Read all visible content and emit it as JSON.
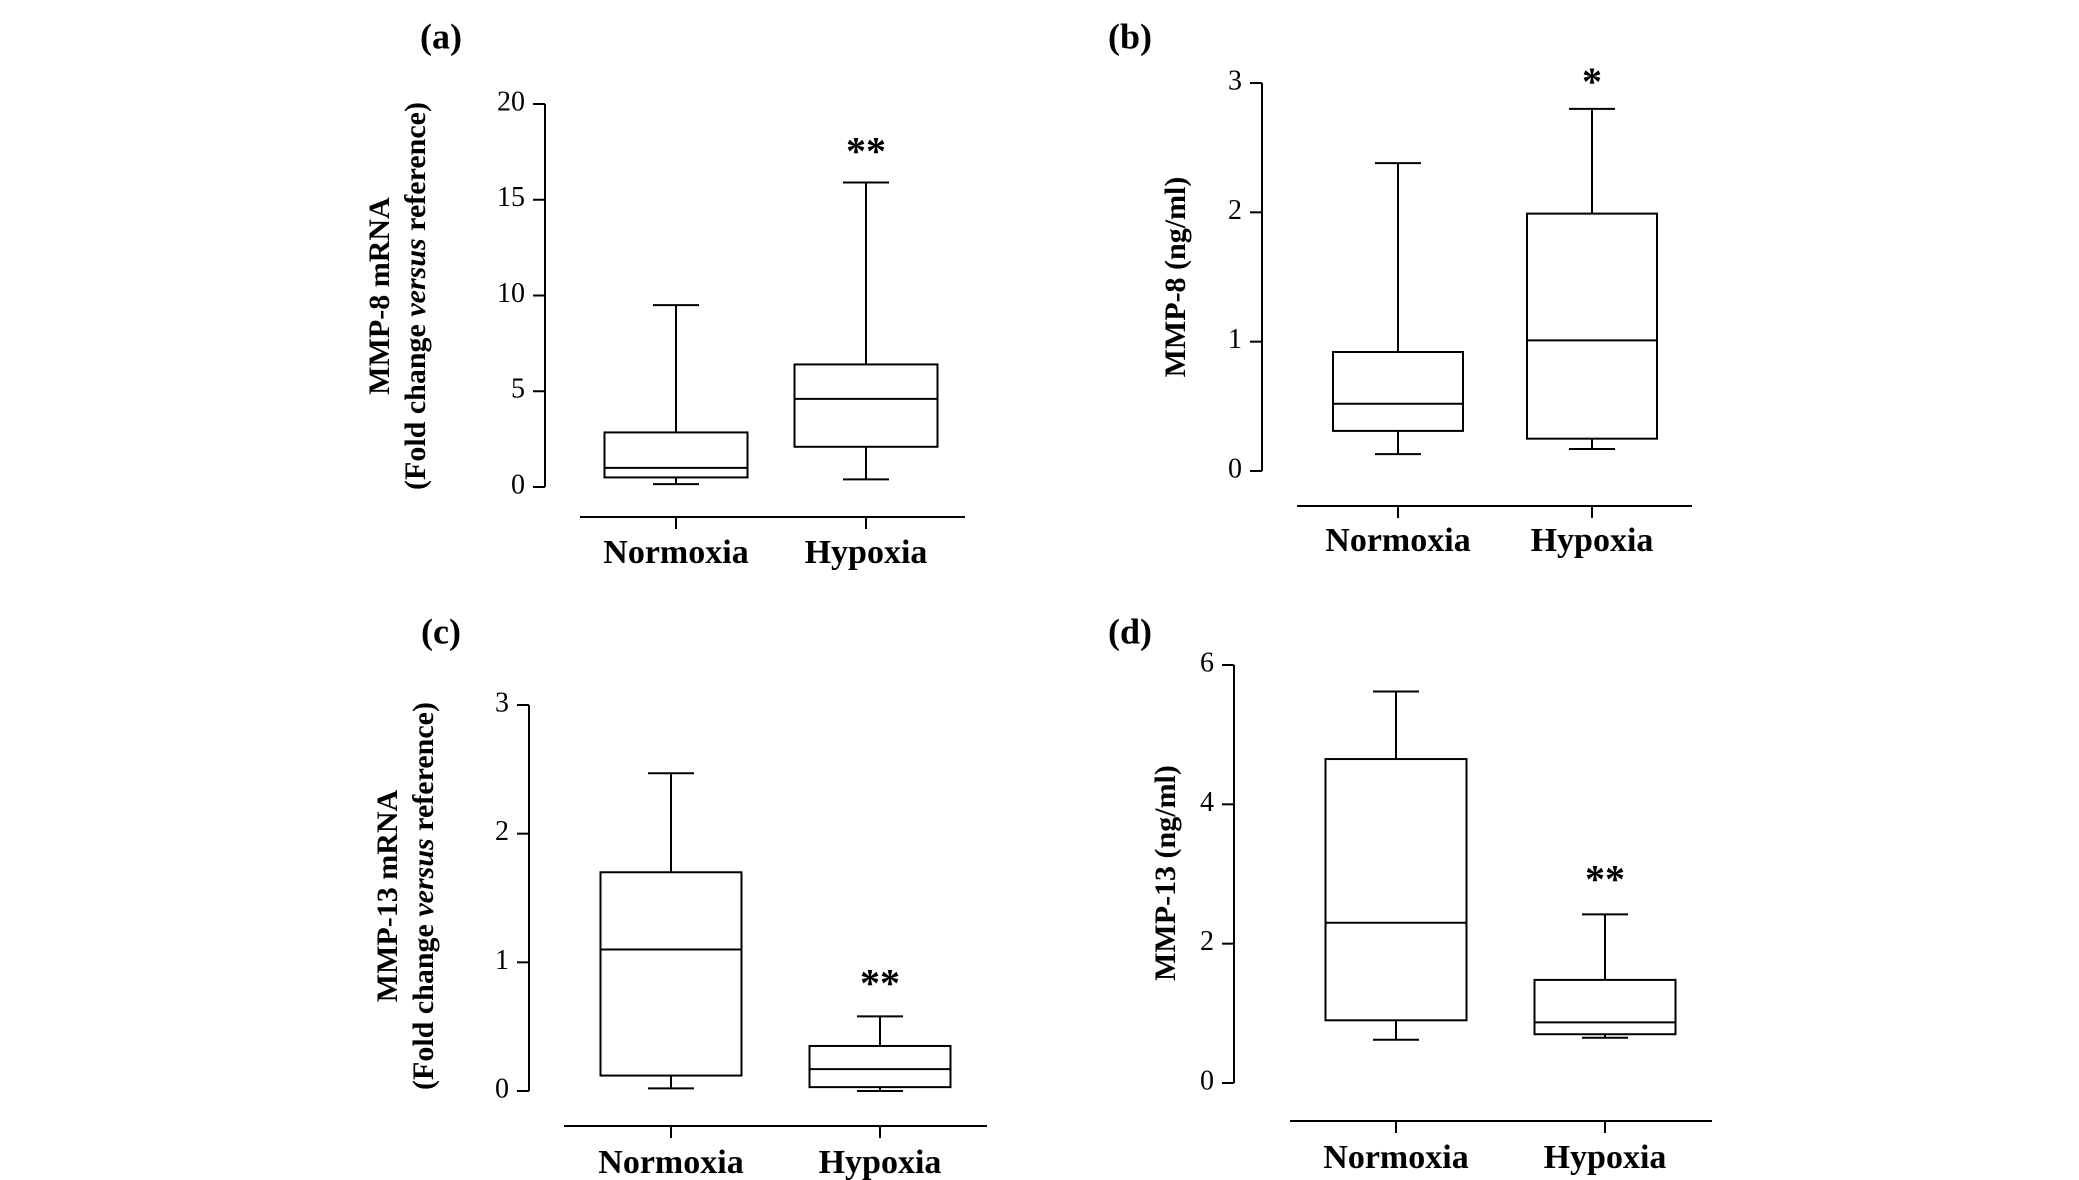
{
  "chart_data": [
    {
      "type": "box",
      "panel": "(a)",
      "ylabel_lines": [
        [
          {
            "t": "MMP-8 mRNA",
            "i": false
          }
        ],
        [
          {
            "t": "(Fold change ",
            "i": false
          },
          {
            "t": "versus",
            "i": true
          },
          {
            "t": " reference)",
            "i": false
          }
        ]
      ],
      "categories": [
        "Normoxia",
        "Hypoxia"
      ],
      "ylim": [
        0,
        20
      ],
      "yticks": [
        0,
        5,
        10,
        15,
        20
      ],
      "boxes": [
        {
          "whisker_low": 0.15,
          "q1": 0.5,
          "median": 1.0,
          "q3": 2.85,
          "whisker_high": 9.5,
          "sig": ""
        },
        {
          "whisker_low": 0.4,
          "q1": 2.1,
          "median": 4.6,
          "q3": 6.4,
          "whisker_high": 15.9,
          "sig": "**"
        }
      ]
    },
    {
      "type": "box",
      "panel": "(b)",
      "ylabel_lines": [
        [
          {
            "t": "MMP-8 (ng/ml)",
            "i": false
          }
        ]
      ],
      "categories": [
        "Normoxia",
        "Hypoxia"
      ],
      "ylim": [
        0,
        3
      ],
      "yticks": [
        0,
        1,
        2,
        3
      ],
      "boxes": [
        {
          "whisker_low": 0.13,
          "q1": 0.31,
          "median": 0.52,
          "q3": 0.92,
          "whisker_high": 2.38,
          "sig": ""
        },
        {
          "whisker_low": 0.17,
          "q1": 0.25,
          "median": 1.01,
          "q3": 1.99,
          "whisker_high": 2.8,
          "sig": "*"
        }
      ]
    },
    {
      "type": "box",
      "panel": "(c)",
      "ylabel_lines": [
        [
          {
            "t": "MMP-13 mRNA",
            "i": false
          }
        ],
        [
          {
            "t": "(Fold change ",
            "i": false
          },
          {
            "t": "versus",
            "i": true
          },
          {
            "t": " reference)",
            "i": false
          }
        ]
      ],
      "categories": [
        "Normoxia",
        "Hypoxia"
      ],
      "ylim": [
        0,
        3
      ],
      "yticks": [
        0,
        1,
        2,
        3
      ],
      "boxes": [
        {
          "whisker_low": 0.02,
          "q1": 0.12,
          "median": 1.1,
          "q3": 1.7,
          "whisker_high": 2.47,
          "sig": ""
        },
        {
          "whisker_low": 0.0,
          "q1": 0.03,
          "median": 0.17,
          "q3": 0.35,
          "whisker_high": 0.58,
          "sig": "**"
        }
      ]
    },
    {
      "type": "box",
      "panel": "(d)",
      "ylabel_lines": [
        [
          {
            "t": "MMP-13 (ng/ml)",
            "i": false
          }
        ]
      ],
      "categories": [
        "Normoxia",
        "Hypoxia"
      ],
      "ylim": [
        0,
        6
      ],
      "yticks": [
        0,
        2,
        4,
        6
      ],
      "boxes": [
        {
          "whisker_low": 0.62,
          "q1": 0.9,
          "median": 2.3,
          "q3": 4.65,
          "whisker_high": 5.62,
          "sig": ""
        },
        {
          "whisker_low": 0.65,
          "q1": 0.7,
          "median": 0.87,
          "q3": 1.48,
          "whisker_high": 2.42,
          "sig": "**"
        }
      ]
    }
  ]
}
